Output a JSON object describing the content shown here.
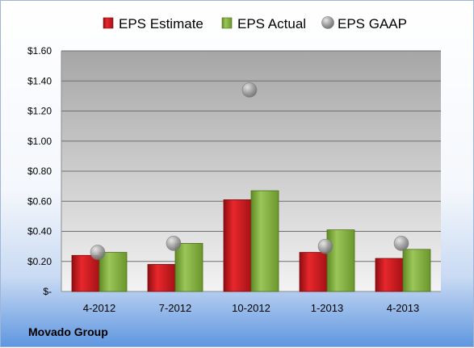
{
  "company": "Movado Group",
  "colors": {
    "estimate": "#c0161b",
    "actual": "#7faa3a",
    "gaap": "#a8a8a8",
    "plot_bg_top": "#a9a9a9",
    "plot_bg_bottom": "#f2f2f2"
  },
  "chart_data": {
    "type": "bar",
    "categories": [
      "4-2012",
      "7-2012",
      "10-2012",
      "1-2013",
      "4-2013"
    ],
    "series": [
      {
        "name": "EPS Estimate",
        "type": "bar",
        "values": [
          0.24,
          0.18,
          0.61,
          0.26,
          0.22
        ]
      },
      {
        "name": "EPS Actual",
        "type": "bar",
        "values": [
          0.26,
          0.32,
          0.67,
          0.41,
          0.28
        ]
      },
      {
        "name": "EPS GAAP",
        "type": "scatter",
        "values": [
          0.26,
          0.32,
          1.34,
          0.3,
          0.32
        ]
      }
    ],
    "ylim": [
      0,
      1.6
    ],
    "yticks": [
      0,
      0.2,
      0.4,
      0.6,
      0.8,
      1.0,
      1.2,
      1.4,
      1.6
    ],
    "ytick_labels": [
      "$-",
      "$0.20",
      "$0.40",
      "$0.60",
      "$0.80",
      "$1.00",
      "$1.20",
      "$1.40",
      "$1.60"
    ],
    "legend_position": "top",
    "grid": true,
    "title": "",
    "xlabel": "",
    "ylabel": ""
  }
}
